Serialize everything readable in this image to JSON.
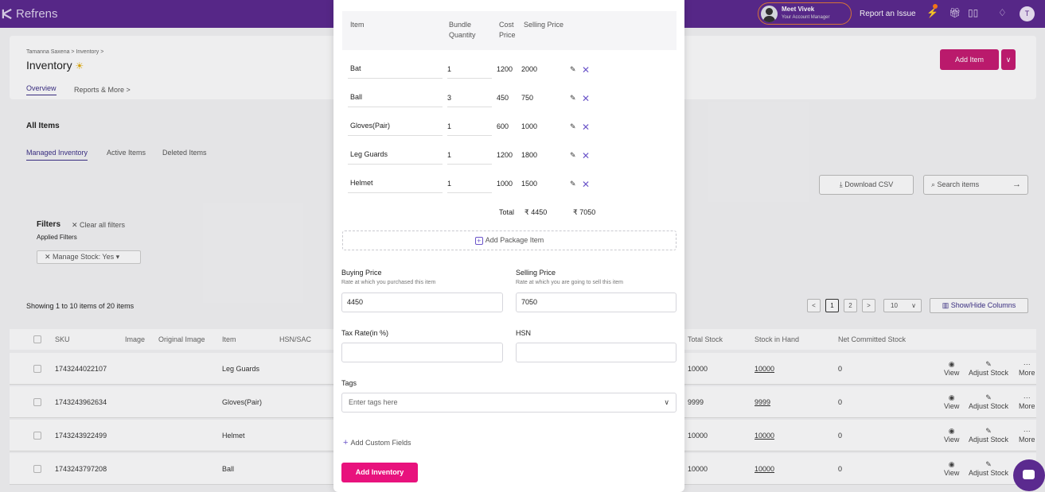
{
  "topbar": {
    "brand": "Refrens",
    "manager_name": "Meet Vivek",
    "manager_sub": "Your Account Manager",
    "report_issue": "Report an Issue",
    "user_initial": "T"
  },
  "page": {
    "breadcrumb": "Tamanna Saxena  >  Inventory  >",
    "title": "Inventory",
    "tabs": [
      "Overview",
      "Reports & More  >"
    ],
    "add_item": "Add Item",
    "add_item_caret": "∨"
  },
  "items_section": {
    "title": "All Items",
    "subtabs": [
      "Managed Inventory",
      "Active Items",
      "Deleted Items"
    ],
    "download_csv": "Download CSV",
    "search_placeholder": "Search items",
    "filters_title": "Filters",
    "clear_filters": "Clear all filters",
    "applied_filters": "Applied Filters",
    "filter_chip": "Manage Stock: Yes",
    "showing_text": "Showing 1 to 10 items of 20 items",
    "pagination": [
      "<",
      "1",
      "2",
      ">"
    ],
    "per_page": "10",
    "show_hide_columns": "Show/Hide Columns"
  },
  "table": {
    "columns": [
      "SKU",
      "Image",
      "Original Image",
      "Item",
      "HSN/SAC",
      "Total Stock",
      "Stock in Hand",
      "Net Committed Stock"
    ],
    "rows": [
      {
        "sku": "1743244022107",
        "item": "Leg Guards",
        "total_stock": "10000",
        "stock_in_hand": "10000",
        "net_committed": "0"
      },
      {
        "sku": "1743243962634",
        "item": "Gloves(Pair)",
        "total_stock": "9999",
        "stock_in_hand": "9999",
        "net_committed": "0"
      },
      {
        "sku": "1743243922499",
        "item": "Helmet",
        "total_stock": "10000",
        "stock_in_hand": "10000",
        "net_committed": "0"
      },
      {
        "sku": "1743243797208",
        "item": "Ball",
        "total_stock": "10000",
        "stock_in_hand": "10000",
        "net_committed": "0"
      }
    ],
    "actions": [
      "View",
      "Adjust Stock",
      "More"
    ]
  },
  "modal": {
    "package_headers": {
      "item": "Item",
      "bundle_quantity_1": "Bundle",
      "bundle_quantity_2": "Quantity",
      "cost_price_1": "Cost",
      "cost_price_2": "Price",
      "selling_price": "Selling Price"
    },
    "package_items": [
      {
        "item": "Bat",
        "qty": "1",
        "cost": "1200",
        "sell": "2000"
      },
      {
        "item": "Ball",
        "qty": "3",
        "cost": "450",
        "sell": "750"
      },
      {
        "item": "Gloves(Pair)",
        "qty": "1",
        "cost": "600",
        "sell": "1000"
      },
      {
        "item": "Leg Guards",
        "qty": "1",
        "cost": "1200",
        "sell": "1800"
      },
      {
        "item": "Helmet",
        "qty": "1",
        "cost": "1000",
        "sell": "1500"
      }
    ],
    "total_label": "Total",
    "total_cost": "₹ 4450",
    "total_sell": "₹ 7050",
    "add_package_item": "Add Package Item",
    "buying_price_label": "Buying Price",
    "buying_price_help": "Rate at which you purchased this item",
    "buying_price_value": "4450",
    "selling_price_label": "Selling Price",
    "selling_price_help": "Rate at which you are going to sell this item",
    "selling_price_value": "7050",
    "tax_rate_label": "Tax Rate(in %)",
    "tax_rate_value": "",
    "hsn_label": "HSN",
    "hsn_value": "",
    "tags_label": "Tags",
    "tags_placeholder": "Enter tags here",
    "add_custom_fields": "Add Custom Fields",
    "add_inventory": "Add Inventory"
  },
  "icons": {
    "brand": "refrens-logo-icon",
    "edit": "pencil-icon",
    "delete": "close-icon",
    "chat": "chat-icon"
  },
  "colors": {
    "topbar": "#5b2a8f",
    "primary_button": "#e8127d",
    "add_item_button": "#c41c72",
    "accent": "#6b55c9"
  }
}
